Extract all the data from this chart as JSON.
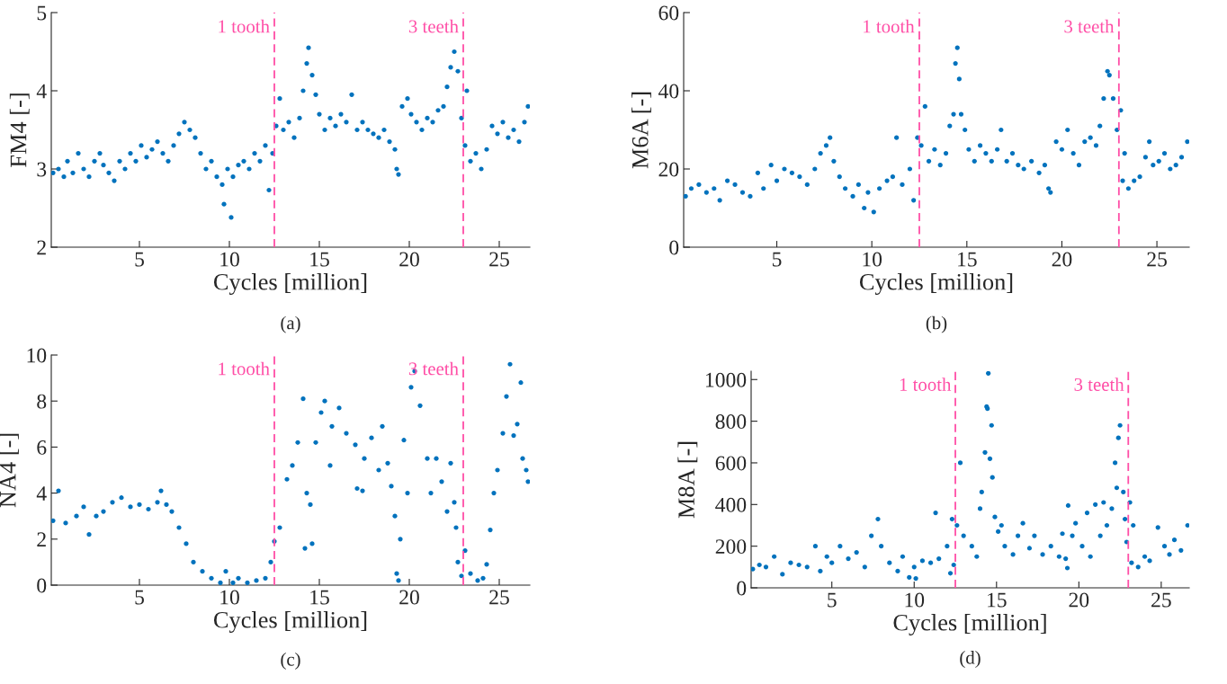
{
  "chart_data": [
    {
      "type": "scatter",
      "xlabel": "Cycles [million]",
      "ylabel": "FM4 [-]",
      "annotations": [
        "(a)"
      ],
      "xlim": [
        0.1,
        26.7
      ],
      "xticks": [
        5,
        10,
        15,
        20,
        25
      ],
      "ylim": [
        2,
        5
      ],
      "yticks": [
        2,
        3,
        4,
        5
      ],
      "grid": false,
      "marker": "circle",
      "ref_lines": [
        {
          "axis": "x",
          "value": 12.5,
          "label": "1 tooth",
          "color": "#ff4fa7",
          "line_style": "dashed"
        },
        {
          "axis": "x",
          "value": 23.0,
          "label": "3 teeth",
          "color": "#ff4fa7",
          "line_style": "dashed"
        }
      ],
      "series": [
        {
          "color": "#0072bd",
          "x": [
            0.2,
            0.5,
            0.8,
            1.0,
            1.3,
            1.6,
            1.9,
            2.2,
            2.5,
            2.8,
            3.0,
            3.3,
            3.6,
            3.9,
            4.2,
            4.5,
            4.8,
            5.1,
            5.4,
            5.7,
            6.0,
            6.3,
            6.6,
            6.9,
            7.2,
            7.5,
            7.8,
            8.1,
            8.4,
            8.7,
            9.0,
            9.3,
            9.6,
            9.7,
            9.9,
            10.1,
            10.2,
            10.5,
            10.8,
            11.1,
            11.4,
            11.7,
            12.0,
            12.2,
            12.4,
            12.6,
            12.8,
            13.0,
            13.3,
            13.6,
            13.9,
            14.1,
            14.3,
            14.4,
            14.6,
            14.8,
            15.0,
            15.3,
            15.6,
            15.9,
            16.2,
            16.5,
            16.8,
            17.1,
            17.4,
            17.7,
            18.0,
            18.3,
            18.6,
            18.9,
            19.2,
            19.3,
            19.4,
            19.6,
            19.9,
            20.1,
            20.4,
            20.7,
            21.0,
            21.3,
            21.6,
            21.9,
            22.1,
            22.3,
            22.5,
            22.7,
            22.9,
            23.1,
            23.2,
            23.4,
            23.7,
            24.0,
            24.3,
            24.6,
            24.9,
            25.2,
            25.5,
            25.8,
            26.1,
            26.4,
            26.6
          ],
          "values": [
            2.95,
            3.0,
            2.9,
            3.1,
            2.95,
            3.2,
            3.0,
            2.9,
            3.1,
            3.2,
            3.05,
            2.95,
            2.85,
            3.1,
            3.0,
            3.2,
            3.1,
            3.3,
            3.15,
            3.25,
            3.35,
            3.2,
            3.1,
            3.3,
            3.45,
            3.6,
            3.5,
            3.4,
            3.2,
            3.0,
            3.1,
            2.9,
            2.8,
            2.55,
            3.0,
            2.38,
            2.9,
            3.05,
            3.1,
            3.0,
            3.2,
            3.1,
            3.3,
            2.73,
            3.2,
            3.55,
            3.9,
            3.5,
            3.6,
            3.4,
            3.65,
            4.0,
            4.35,
            4.55,
            4.2,
            3.95,
            3.7,
            3.5,
            3.65,
            3.55,
            3.7,
            3.6,
            3.95,
            3.5,
            3.6,
            3.5,
            3.45,
            3.4,
            3.5,
            3.35,
            3.25,
            3.0,
            2.93,
            3.8,
            3.9,
            3.7,
            3.6,
            3.5,
            3.65,
            3.6,
            3.75,
            3.8,
            4.05,
            4.3,
            4.5,
            4.25,
            3.65,
            3.3,
            4.0,
            3.1,
            3.2,
            3.0,
            3.25,
            3.55,
            3.45,
            3.6,
            3.4,
            3.5,
            3.35,
            3.6,
            3.8
          ]
        }
      ]
    },
    {
      "type": "scatter",
      "xlabel": "Cycles [million]",
      "ylabel": "M6A [-]",
      "annotations": [
        "(b)"
      ],
      "xlim": [
        0.1,
        26.7
      ],
      "xticks": [
        5,
        10,
        15,
        20,
        25
      ],
      "ylim": [
        0,
        60
      ],
      "yticks": [
        0,
        20,
        40,
        60
      ],
      "grid": false,
      "marker": "circle",
      "ref_lines": [
        {
          "axis": "x",
          "value": 12.5,
          "label": "1 tooth",
          "color": "#ff4fa7",
          "line_style": "dashed"
        },
        {
          "axis": "x",
          "value": 23.0,
          "label": "3 teeth",
          "color": "#ff4fa7",
          "line_style": "dashed"
        }
      ],
      "series": [
        {
          "color": "#0072bd",
          "x": [
            0.2,
            0.5,
            0.9,
            1.3,
            1.7,
            2.0,
            2.4,
            2.8,
            3.2,
            3.6,
            4.0,
            4.3,
            4.7,
            5.0,
            5.4,
            5.8,
            6.2,
            6.6,
            7.0,
            7.3,
            7.6,
            7.8,
            8.0,
            8.3,
            8.6,
            9.0,
            9.3,
            9.6,
            9.8,
            10.1,
            10.4,
            10.8,
            11.1,
            11.3,
            11.6,
            12.0,
            12.2,
            12.4,
            12.6,
            12.8,
            13.0,
            13.3,
            13.6,
            13.9,
            14.1,
            14.3,
            14.4,
            14.5,
            14.6,
            14.7,
            14.9,
            15.1,
            15.4,
            15.7,
            16.0,
            16.3,
            16.6,
            16.8,
            17.1,
            17.4,
            17.7,
            18.0,
            18.4,
            18.8,
            19.1,
            19.3,
            19.4,
            19.7,
            20.0,
            20.3,
            20.6,
            20.9,
            21.2,
            21.5,
            21.8,
            22.0,
            22.2,
            22.4,
            22.5,
            22.7,
            22.9,
            23.1,
            23.2,
            23.3,
            23.5,
            23.8,
            24.1,
            24.4,
            24.6,
            24.8,
            25.1,
            25.4,
            25.7,
            26.0,
            26.3,
            26.6
          ],
          "values": [
            13,
            15,
            16,
            14,
            15,
            12,
            17,
            16,
            14,
            13,
            19,
            15,
            21,
            17,
            20,
            19,
            18,
            16,
            20,
            24,
            26,
            28,
            22,
            18,
            15,
            13,
            16,
            10,
            14,
            9,
            15,
            17,
            18,
            28,
            16,
            20,
            12,
            28,
            26,
            36,
            22,
            25,
            21,
            24,
            31,
            34,
            47,
            51,
            43,
            34,
            30,
            25,
            22,
            26,
            24,
            22,
            25,
            30,
            22,
            24,
            21,
            20,
            22,
            19,
            21,
            15,
            14,
            27,
            25,
            30,
            24,
            21,
            27,
            28,
            26,
            31,
            38,
            45,
            44,
            38,
            30,
            35,
            17,
            24,
            15,
            17,
            18,
            23,
            27,
            21,
            22,
            24,
            20,
            21,
            23,
            27
          ]
        }
      ]
    },
    {
      "type": "scatter",
      "xlabel": "Cycles [million]",
      "ylabel": "NA4 [-]",
      "annotations": [
        "(c)"
      ],
      "xlim": [
        0.1,
        26.7
      ],
      "xticks": [
        5,
        10,
        15,
        20,
        25
      ],
      "ylim": [
        0,
        10
      ],
      "yticks": [
        0,
        2,
        4,
        6,
        8,
        10
      ],
      "grid": false,
      "marker": "circle",
      "ref_lines": [
        {
          "axis": "x",
          "value": 12.5,
          "label": "1 tooth",
          "color": "#ff4fa7",
          "line_style": "dashed"
        },
        {
          "axis": "x",
          "value": 23.0,
          "label": "3 teeth",
          "color": "#ff4fa7",
          "line_style": "dashed"
        }
      ],
      "series": [
        {
          "color": "#0072bd",
          "x": [
            0.2,
            0.5,
            0.9,
            1.5,
            1.9,
            2.2,
            2.6,
            3.0,
            3.5,
            4.0,
            4.5,
            5.0,
            5.5,
            6.0,
            6.2,
            6.5,
            6.8,
            7.2,
            7.6,
            8.0,
            8.5,
            9.0,
            9.5,
            9.8,
            10.2,
            10.5,
            11.0,
            11.5,
            12.0,
            12.3,
            12.5,
            12.8,
            13.2,
            13.5,
            13.8,
            14.1,
            14.2,
            14.3,
            14.5,
            14.6,
            14.8,
            15.1,
            15.3,
            15.6,
            15.7,
            16.1,
            16.5,
            17.0,
            17.1,
            17.4,
            17.5,
            17.9,
            18.3,
            18.5,
            18.8,
            19.0,
            19.2,
            19.3,
            19.4,
            19.5,
            19.7,
            19.9,
            20.1,
            20.3,
            20.6,
            21.0,
            21.2,
            21.5,
            21.8,
            22.1,
            22.3,
            22.5,
            22.6,
            22.7,
            22.9,
            23.1,
            23.4,
            23.8,
            24.1,
            24.3,
            24.5,
            24.7,
            24.9,
            25.2,
            25.4,
            25.6,
            25.8,
            26.0,
            26.2,
            26.3,
            26.5,
            26.6
          ],
          "values": [
            2.8,
            4.1,
            2.7,
            3.0,
            3.4,
            2.2,
            3.0,
            3.2,
            3.6,
            3.8,
            3.4,
            3.5,
            3.3,
            3.6,
            4.1,
            3.5,
            3.2,
            2.5,
            1.8,
            1.0,
            0.6,
            0.3,
            0.1,
            0.6,
            0.1,
            0.3,
            0.1,
            0.2,
            0.3,
            1.0,
            1.9,
            2.5,
            4.6,
            5.2,
            6.2,
            8.1,
            1.6,
            4.0,
            3.5,
            1.8,
            6.2,
            7.5,
            8.0,
            5.2,
            6.9,
            7.7,
            6.6,
            6.1,
            4.2,
            4.1,
            5.5,
            6.4,
            5.0,
            6.9,
            5.3,
            4.3,
            3.0,
            0.5,
            0.2,
            2.0,
            6.3,
            4.0,
            8.6,
            9.3,
            7.8,
            5.5,
            4.0,
            5.5,
            4.5,
            3.2,
            5.3,
            3.6,
            2.5,
            1.0,
            0.4,
            1.5,
            0.5,
            0.2,
            0.3,
            0.9,
            2.4,
            4.0,
            5.0,
            6.6,
            8.2,
            9.6,
            6.5,
            7.0,
            8.8,
            5.5,
            5.0,
            4.5
          ]
        }
      ]
    },
    {
      "type": "scatter",
      "xlabel": "Cycles [million]",
      "ylabel": "M8A [-]",
      "annotations": [
        "(d)"
      ],
      "xlim": [
        0.1,
        26.7
      ],
      "xticks": [
        5,
        10,
        15,
        20,
        25
      ],
      "ylim": [
        0,
        1040
      ],
      "yticks": [
        0,
        200,
        400,
        600,
        800,
        1000
      ],
      "grid": false,
      "marker": "circle",
      "ref_lines": [
        {
          "axis": "x",
          "value": 12.5,
          "label": "1 tooth",
          "color": "#ff4fa7",
          "line_style": "dashed"
        },
        {
          "axis": "x",
          "value": 23.0,
          "label": "3 teeth",
          "color": "#ff4fa7",
          "line_style": "dashed"
        }
      ],
      "series": [
        {
          "color": "#0072bd",
          "x": [
            0.2,
            0.6,
            1.0,
            1.5,
            2.0,
            2.5,
            3.0,
            3.5,
            4.0,
            4.3,
            4.7,
            5.0,
            5.5,
            6.0,
            6.5,
            7.0,
            7.4,
            7.8,
            8.0,
            8.5,
            9.0,
            9.3,
            9.7,
            10.0,
            10.1,
            10.5,
            11.0,
            11.3,
            11.5,
            12.0,
            12.2,
            12.3,
            12.4,
            12.6,
            12.8,
            13.0,
            13.5,
            13.8,
            14.0,
            14.1,
            14.3,
            14.4,
            14.45,
            14.5,
            14.6,
            14.7,
            14.75,
            14.9,
            15.1,
            15.3,
            15.5,
            16.0,
            16.3,
            16.6,
            17.0,
            17.3,
            17.8,
            18.3,
            18.8,
            19.0,
            19.2,
            19.3,
            19.35,
            19.6,
            19.8,
            20.2,
            20.5,
            20.7,
            21.0,
            21.3,
            21.5,
            21.7,
            22.0,
            22.2,
            22.3,
            22.4,
            22.5,
            22.7,
            22.8,
            22.9,
            23.1,
            23.2,
            23.3,
            23.6,
            24.0,
            24.3,
            24.8,
            25.2,
            25.5,
            25.8,
            26.2,
            26.6
          ],
          "values": [
            90,
            110,
            100,
            150,
            65,
            120,
            110,
            100,
            200,
            80,
            150,
            120,
            200,
            140,
            170,
            100,
            250,
            330,
            200,
            120,
            80,
            150,
            50,
            100,
            45,
            130,
            120,
            360,
            140,
            200,
            70,
            330,
            110,
            300,
            600,
            250,
            200,
            150,
            380,
            460,
            650,
            870,
            860,
            1030,
            620,
            780,
            530,
            340,
            270,
            300,
            200,
            160,
            250,
            310,
            190,
            250,
            160,
            200,
            150,
            260,
            140,
            95,
            395,
            250,
            310,
            200,
            360,
            150,
            400,
            250,
            410,
            300,
            380,
            600,
            480,
            720,
            780,
            460,
            330,
            220,
            410,
            120,
            300,
            100,
            150,
            130,
            290,
            200,
            160,
            230,
            180,
            300
          ]
        }
      ]
    }
  ]
}
